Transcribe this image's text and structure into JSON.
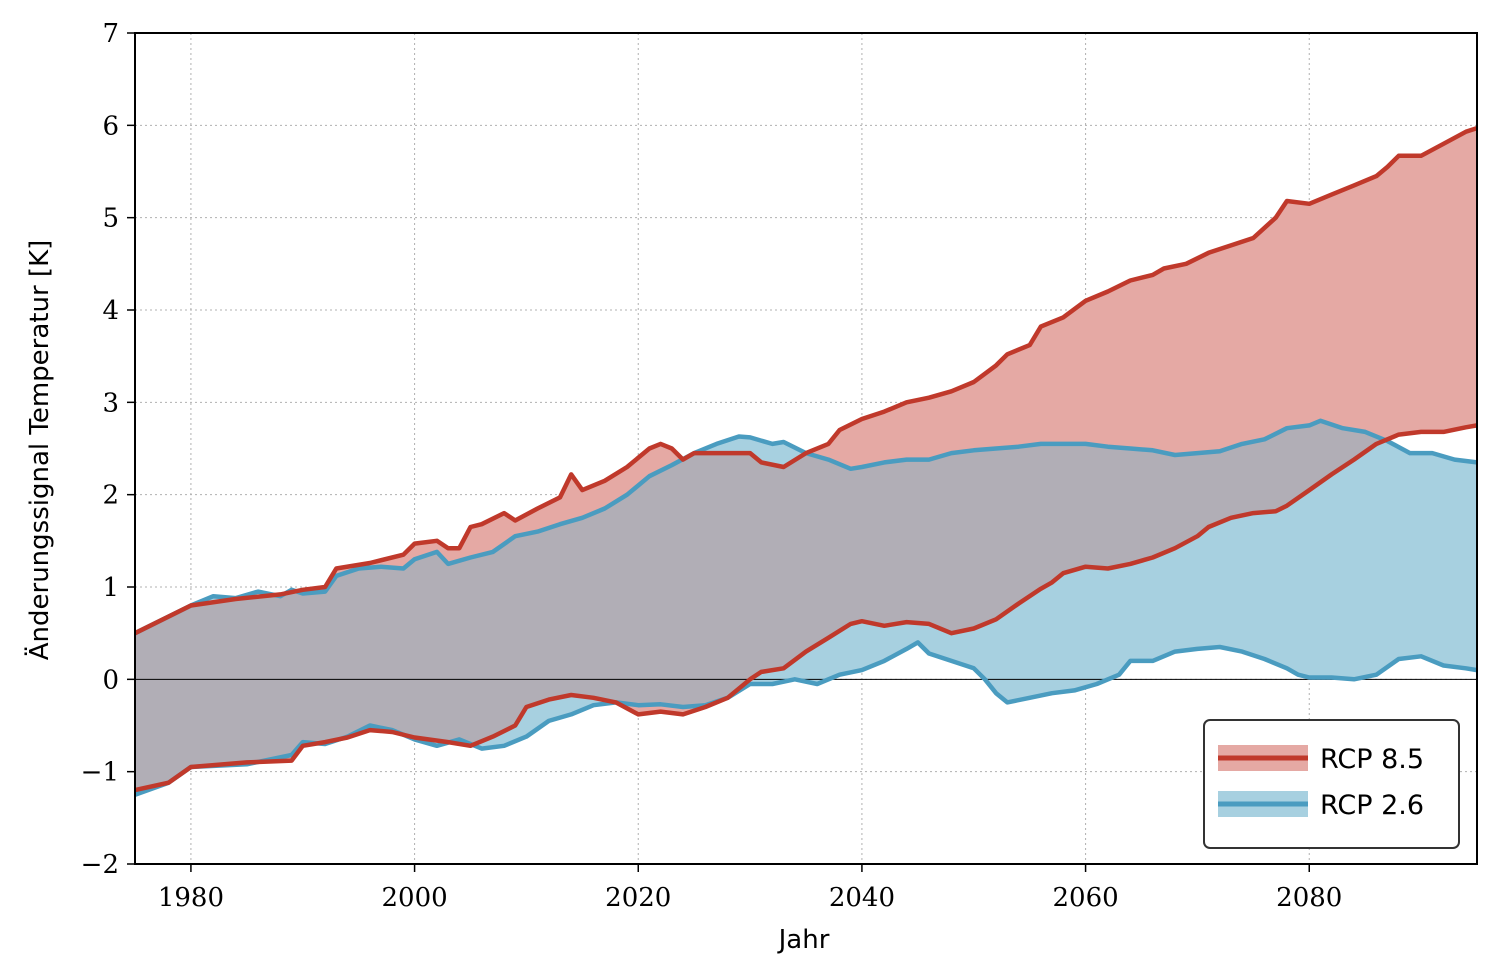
{
  "chart_data": {
    "type": "area",
    "xlabel": "Jahr",
    "ylabel": "Änderungssignal Temperatur [K]",
    "xlim": [
      1975,
      2095
    ],
    "ylim": [
      -2,
      7
    ],
    "x_ticks": [
      1980,
      2000,
      2020,
      2040,
      2060,
      2080
    ],
    "x_tick_labels": [
      "1980",
      "2000",
      "2020",
      "2040",
      "2060",
      "2080"
    ],
    "y_ticks": [
      -2,
      -1,
      0,
      1,
      2,
      3,
      4,
      5,
      6,
      7
    ],
    "y_tick_labels": [
      "−2",
      "−1",
      "0",
      "1",
      "2",
      "3",
      "4",
      "5",
      "6",
      "7"
    ],
    "grid": true,
    "zero_line": true,
    "legend_placement": "lower-right",
    "series": [
      {
        "name": "RCP 8.5",
        "color": "#c0392b",
        "fill_color": "#e5a9a4",
        "upper": [
          [
            1975,
            0.5
          ],
          [
            1980,
            0.8
          ],
          [
            1984,
            0.87
          ],
          [
            1988,
            0.92
          ],
          [
            1990,
            0.97
          ],
          [
            1992,
            1.0
          ],
          [
            1993,
            1.2
          ],
          [
            1996,
            1.26
          ],
          [
            1999,
            1.35
          ],
          [
            2000,
            1.47
          ],
          [
            2002,
            1.5
          ],
          [
            2003,
            1.42
          ],
          [
            2004,
            1.42
          ],
          [
            2005,
            1.65
          ],
          [
            2006,
            1.68
          ],
          [
            2008,
            1.8
          ],
          [
            2009,
            1.72
          ],
          [
            2011,
            1.85
          ],
          [
            2013,
            1.97
          ],
          [
            2014,
            2.22
          ],
          [
            2015,
            2.05
          ],
          [
            2017,
            2.15
          ],
          [
            2019,
            2.3
          ],
          [
            2021,
            2.5
          ],
          [
            2022,
            2.55
          ],
          [
            2023,
            2.5
          ],
          [
            2024,
            2.38
          ],
          [
            2025,
            2.45
          ],
          [
            2027,
            2.45
          ],
          [
            2030,
            2.45
          ],
          [
            2031,
            2.35
          ],
          [
            2033,
            2.3
          ],
          [
            2035,
            2.45
          ],
          [
            2037,
            2.55
          ],
          [
            2038,
            2.7
          ],
          [
            2040,
            2.82
          ],
          [
            2042,
            2.9
          ],
          [
            2044,
            3.0
          ],
          [
            2046,
            3.05
          ],
          [
            2048,
            3.12
          ],
          [
            2050,
            3.22
          ],
          [
            2052,
            3.4
          ],
          [
            2053,
            3.52
          ],
          [
            2055,
            3.62
          ],
          [
            2056,
            3.82
          ],
          [
            2058,
            3.92
          ],
          [
            2060,
            4.1
          ],
          [
            2062,
            4.2
          ],
          [
            2064,
            4.32
          ],
          [
            2066,
            4.38
          ],
          [
            2067,
            4.45
          ],
          [
            2069,
            4.5
          ],
          [
            2071,
            4.62
          ],
          [
            2073,
            4.7
          ],
          [
            2075,
            4.78
          ],
          [
            2077,
            5.0
          ],
          [
            2078,
            5.18
          ],
          [
            2080,
            5.15
          ],
          [
            2082,
            5.25
          ],
          [
            2084,
            5.35
          ],
          [
            2086,
            5.45
          ],
          [
            2087,
            5.55
          ],
          [
            2088,
            5.67
          ],
          [
            2090,
            5.67
          ],
          [
            2092,
            5.8
          ],
          [
            2094,
            5.93
          ],
          [
            2095,
            5.97
          ]
        ],
        "lower": [
          [
            1975,
            -1.2
          ],
          [
            1978,
            -1.12
          ],
          [
            1980,
            -0.95
          ],
          [
            1985,
            -0.9
          ],
          [
            1989,
            -0.88
          ],
          [
            1990,
            -0.72
          ],
          [
            1992,
            -0.68
          ],
          [
            1994,
            -0.63
          ],
          [
            1996,
            -0.55
          ],
          [
            1998,
            -0.57
          ],
          [
            2000,
            -0.63
          ],
          [
            2003,
            -0.68
          ],
          [
            2005,
            -0.72
          ],
          [
            2007,
            -0.62
          ],
          [
            2009,
            -0.5
          ],
          [
            2010,
            -0.3
          ],
          [
            2012,
            -0.22
          ],
          [
            2014,
            -0.17
          ],
          [
            2016,
            -0.2
          ],
          [
            2018,
            -0.25
          ],
          [
            2020,
            -0.38
          ],
          [
            2022,
            -0.35
          ],
          [
            2024,
            -0.38
          ],
          [
            2026,
            -0.3
          ],
          [
            2028,
            -0.2
          ],
          [
            2030,
            0.0
          ],
          [
            2031,
            0.08
          ],
          [
            2033,
            0.12
          ],
          [
            2035,
            0.3
          ],
          [
            2037,
            0.45
          ],
          [
            2039,
            0.6
          ],
          [
            2040,
            0.63
          ],
          [
            2042,
            0.58
          ],
          [
            2044,
            0.62
          ],
          [
            2046,
            0.6
          ],
          [
            2048,
            0.5
          ],
          [
            2050,
            0.55
          ],
          [
            2052,
            0.65
          ],
          [
            2054,
            0.82
          ],
          [
            2056,
            0.98
          ],
          [
            2057,
            1.05
          ],
          [
            2058,
            1.15
          ],
          [
            2060,
            1.22
          ],
          [
            2062,
            1.2
          ],
          [
            2064,
            1.25
          ],
          [
            2066,
            1.32
          ],
          [
            2068,
            1.42
          ],
          [
            2070,
            1.55
          ],
          [
            2071,
            1.65
          ],
          [
            2073,
            1.75
          ],
          [
            2075,
            1.8
          ],
          [
            2077,
            1.82
          ],
          [
            2078,
            1.88
          ],
          [
            2080,
            2.05
          ],
          [
            2082,
            2.22
          ],
          [
            2084,
            2.38
          ],
          [
            2086,
            2.55
          ],
          [
            2088,
            2.65
          ],
          [
            2090,
            2.68
          ],
          [
            2092,
            2.68
          ],
          [
            2094,
            2.73
          ],
          [
            2095,
            2.75
          ]
        ]
      },
      {
        "name": "RCP 2.6",
        "color": "#4a9cc0",
        "fill_color": "#a7d0e0",
        "upper": [
          [
            1975,
            0.5
          ],
          [
            1980,
            0.8
          ],
          [
            1982,
            0.9
          ],
          [
            1984,
            0.88
          ],
          [
            1986,
            0.95
          ],
          [
            1988,
            0.9
          ],
          [
            1989,
            0.97
          ],
          [
            1990,
            0.93
          ],
          [
            1992,
            0.95
          ],
          [
            1993,
            1.12
          ],
          [
            1995,
            1.2
          ],
          [
            1997,
            1.22
          ],
          [
            1999,
            1.2
          ],
          [
            2000,
            1.3
          ],
          [
            2002,
            1.38
          ],
          [
            2003,
            1.25
          ],
          [
            2005,
            1.32
          ],
          [
            2007,
            1.38
          ],
          [
            2009,
            1.55
          ],
          [
            2011,
            1.6
          ],
          [
            2013,
            1.68
          ],
          [
            2015,
            1.75
          ],
          [
            2017,
            1.85
          ],
          [
            2019,
            2.0
          ],
          [
            2021,
            2.2
          ],
          [
            2023,
            2.32
          ],
          [
            2025,
            2.45
          ],
          [
            2027,
            2.55
          ],
          [
            2029,
            2.63
          ],
          [
            2030,
            2.62
          ],
          [
            2032,
            2.55
          ],
          [
            2033,
            2.57
          ],
          [
            2035,
            2.45
          ],
          [
            2037,
            2.38
          ],
          [
            2039,
            2.28
          ],
          [
            2040,
            2.3
          ],
          [
            2042,
            2.35
          ],
          [
            2044,
            2.38
          ],
          [
            2046,
            2.38
          ],
          [
            2048,
            2.45
          ],
          [
            2050,
            2.48
          ],
          [
            2052,
            2.5
          ],
          [
            2054,
            2.52
          ],
          [
            2056,
            2.55
          ],
          [
            2058,
            2.55
          ],
          [
            2060,
            2.55
          ],
          [
            2062,
            2.52
          ],
          [
            2064,
            2.5
          ],
          [
            2066,
            2.48
          ],
          [
            2068,
            2.43
          ],
          [
            2070,
            2.45
          ],
          [
            2072,
            2.47
          ],
          [
            2074,
            2.55
          ],
          [
            2076,
            2.6
          ],
          [
            2078,
            2.72
          ],
          [
            2080,
            2.75
          ],
          [
            2081,
            2.8
          ],
          [
            2083,
            2.72
          ],
          [
            2085,
            2.68
          ],
          [
            2087,
            2.58
          ],
          [
            2089,
            2.45
          ],
          [
            2091,
            2.45
          ],
          [
            2093,
            2.38
          ],
          [
            2095,
            2.35
          ]
        ],
        "lower": [
          [
            1975,
            -1.25
          ],
          [
            1978,
            -1.12
          ],
          [
            1980,
            -0.95
          ],
          [
            1985,
            -0.92
          ],
          [
            1989,
            -0.82
          ],
          [
            1990,
            -0.68
          ],
          [
            1992,
            -0.7
          ],
          [
            1994,
            -0.62
          ],
          [
            1996,
            -0.5
          ],
          [
            1998,
            -0.55
          ],
          [
            2000,
            -0.65
          ],
          [
            2002,
            -0.72
          ],
          [
            2004,
            -0.65
          ],
          [
            2006,
            -0.75
          ],
          [
            2008,
            -0.72
          ],
          [
            2010,
            -0.62
          ],
          [
            2012,
            -0.45
          ],
          [
            2014,
            -0.38
          ],
          [
            2016,
            -0.28
          ],
          [
            2018,
            -0.25
          ],
          [
            2020,
            -0.28
          ],
          [
            2022,
            -0.27
          ],
          [
            2024,
            -0.3
          ],
          [
            2026,
            -0.28
          ],
          [
            2028,
            -0.2
          ],
          [
            2030,
            -0.05
          ],
          [
            2032,
            -0.05
          ],
          [
            2034,
            0.0
          ],
          [
            2036,
            -0.05
          ],
          [
            2038,
            0.05
          ],
          [
            2040,
            0.1
          ],
          [
            2042,
            0.2
          ],
          [
            2044,
            0.33
          ],
          [
            2045,
            0.4
          ],
          [
            2046,
            0.28
          ],
          [
            2048,
            0.2
          ],
          [
            2050,
            0.12
          ],
          [
            2051,
            0.0
          ],
          [
            2052,
            -0.15
          ],
          [
            2053,
            -0.25
          ],
          [
            2055,
            -0.2
          ],
          [
            2057,
            -0.15
          ],
          [
            2059,
            -0.12
          ],
          [
            2061,
            -0.05
          ],
          [
            2063,
            0.05
          ],
          [
            2064,
            0.2
          ],
          [
            2066,
            0.2
          ],
          [
            2068,
            0.3
          ],
          [
            2070,
            0.33
          ],
          [
            2072,
            0.35
          ],
          [
            2074,
            0.3
          ],
          [
            2076,
            0.22
          ],
          [
            2078,
            0.12
          ],
          [
            2079,
            0.05
          ],
          [
            2080,
            0.02
          ],
          [
            2082,
            0.02
          ],
          [
            2084,
            0.0
          ],
          [
            2086,
            0.05
          ],
          [
            2088,
            0.22
          ],
          [
            2090,
            0.25
          ],
          [
            2092,
            0.15
          ],
          [
            2094,
            0.12
          ],
          [
            2095,
            0.1
          ]
        ]
      }
    ],
    "overlap_color": "#b1aeb6"
  }
}
